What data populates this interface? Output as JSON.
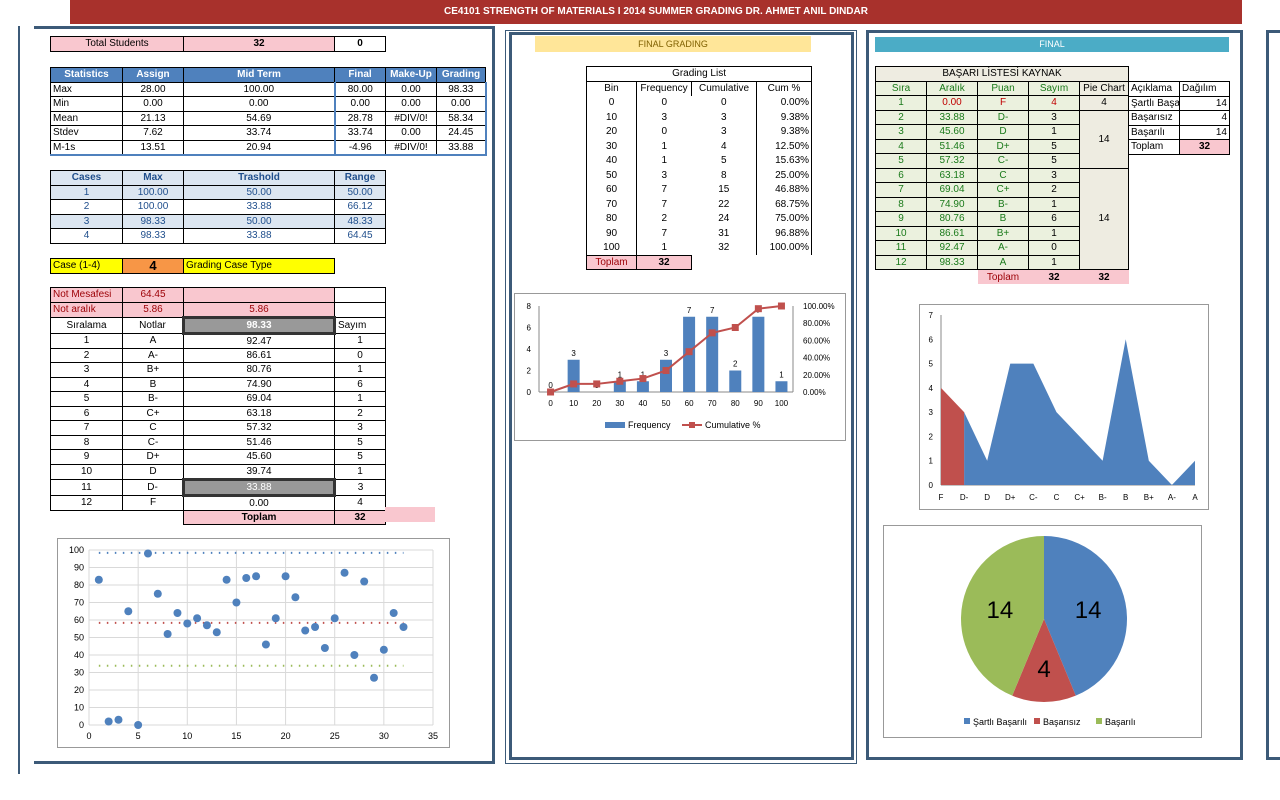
{
  "title": "CE4101 STRENGTH OF MATERIALS I 2014 SUMMER GRADING  DR. AHMET ANIL DINDAR",
  "left": {
    "total_students_label": "Total Students",
    "total_students": "32",
    "total_extra": "0",
    "stats_headers": [
      "Statistics",
      "Assign",
      "Mid Term",
      "Final",
      "Make-Up",
      "Grading"
    ],
    "stats_rows": [
      [
        "Max",
        "28.00",
        "100.00",
        "80.00",
        "0.00",
        "98.33"
      ],
      [
        "Min",
        "0.00",
        "0.00",
        "0.00",
        "0.00",
        "0.00"
      ],
      [
        "Mean",
        "21.13",
        "54.69",
        "28.78",
        "#DIV/0!",
        "58.34"
      ],
      [
        "Stdev",
        "7.62",
        "33.74",
        "33.74",
        "0.00",
        "24.45"
      ],
      [
        "M-1s",
        "13.51",
        "20.94",
        "-4.96",
        "#DIV/0!",
        "33.88"
      ]
    ],
    "cases_headers": [
      "Cases",
      "Max",
      "Trashold",
      "Range"
    ],
    "cases_rows": [
      [
        "1",
        "100.00",
        "50.00",
        "50.00"
      ],
      [
        "2",
        "100.00",
        "33.88",
        "66.12"
      ],
      [
        "3",
        "98.33",
        "50.00",
        "48.33"
      ],
      [
        "4",
        "98.33",
        "33.88",
        "64.45"
      ]
    ],
    "case_label": "Case (1-4)",
    "case_value": "4",
    "case_type_label": "Grading Case Type",
    "not_mesafesi_label": "Not Mesafesi",
    "not_mesafesi": "64.45",
    "not_aralik_label": "Not aralık",
    "not_aralik": "5.86",
    "not_aralik2": "5.86",
    "grade_headers": [
      "Sıralama",
      "Notlar",
      "98.33",
      "Sayım"
    ],
    "grade_rows": [
      [
        "1",
        "A",
        "92.47",
        "1"
      ],
      [
        "2",
        "A-",
        "86.61",
        "0"
      ],
      [
        "3",
        "B+",
        "80.76",
        "1"
      ],
      [
        "4",
        "B",
        "74.90",
        "6"
      ],
      [
        "5",
        "B-",
        "69.04",
        "1"
      ],
      [
        "6",
        "C+",
        "63.18",
        "2"
      ],
      [
        "7",
        "C",
        "57.32",
        "3"
      ],
      [
        "8",
        "C-",
        "51.46",
        "5"
      ],
      [
        "9",
        "D+",
        "45.60",
        "5"
      ],
      [
        "10",
        "D",
        "39.74",
        "1"
      ],
      [
        "11",
        "D-",
        "33.88",
        "3"
      ],
      [
        "12",
        "F",
        "0.00",
        "4"
      ]
    ],
    "toplam_label": "Toplam",
    "toplam_value": "32"
  },
  "middle": {
    "header": "FINAL GRADING",
    "grading_list_title": "Grading List",
    "headers": [
      "Bin",
      "Frequency",
      "Cumulative",
      "Cum %"
    ],
    "rows": [
      [
        "0",
        "0",
        "0",
        "0.00%"
      ],
      [
        "10",
        "3",
        "3",
        "9.38%"
      ],
      [
        "20",
        "0",
        "3",
        "9.38%"
      ],
      [
        "30",
        "1",
        "4",
        "12.50%"
      ],
      [
        "40",
        "1",
        "5",
        "15.63%"
      ],
      [
        "50",
        "3",
        "8",
        "25.00%"
      ],
      [
        "60",
        "7",
        "15",
        "46.88%"
      ],
      [
        "70",
        "7",
        "22",
        "68.75%"
      ],
      [
        "80",
        "2",
        "24",
        "75.00%"
      ],
      [
        "90",
        "7",
        "31",
        "96.88%"
      ],
      [
        "100",
        "1",
        "32",
        "100.00%"
      ]
    ],
    "toplam_label": "Toplam",
    "toplam_value": "32"
  },
  "right": {
    "header": "FINAL",
    "list_title": "BAŞARI LİSTESİ KAYNAK",
    "headers": [
      "Sıra",
      "Aralık",
      "Puan",
      "Sayım",
      "Pie Chart"
    ],
    "rows": [
      [
        "1",
        "0.00",
        "F",
        "4"
      ],
      [
        "2",
        "33.88",
        "D-",
        "3"
      ],
      [
        "3",
        "45.60",
        "D",
        "1"
      ],
      [
        "4",
        "51.46",
        "D+",
        "5"
      ],
      [
        "5",
        "57.32",
        "C-",
        "5"
      ],
      [
        "6",
        "63.18",
        "C",
        "3"
      ],
      [
        "7",
        "69.04",
        "C+",
        "2"
      ],
      [
        "8",
        "74.90",
        "B-",
        "1"
      ],
      [
        "9",
        "80.76",
        "B",
        "6"
      ],
      [
        "10",
        "86.61",
        "B+",
        "1"
      ],
      [
        "11",
        "92.47",
        "A-",
        "0"
      ],
      [
        "12",
        "98.33",
        "A",
        "1"
      ]
    ],
    "pie_values": [
      "4",
      "14",
      "14"
    ],
    "toplam_label": "Toplam",
    "toplam_value": "32",
    "toplam_value2": "32",
    "summary_headers": [
      "Açıklama",
      "Dağılım"
    ],
    "summary_rows": [
      [
        "Şartlı Başarılı",
        "14"
      ],
      [
        "Başarısız",
        "4"
      ],
      [
        "Başarılı",
        "14"
      ]
    ],
    "summary_total_label": "Toplam",
    "summary_total": "32"
  },
  "colors": {
    "banner": "#a8312c",
    "blue": "#4f81bd",
    "red": "#c0504d",
    "green": "#9bbb59",
    "pink": "#f9c7cf",
    "panel_border": "#3c5a78"
  },
  "chart_data": [
    {
      "type": "scatter",
      "xlim": [
        0,
        35
      ],
      "ylim": [
        0,
        100
      ],
      "x_ticks": [
        "0",
        "5",
        "10",
        "15",
        "20",
        "25",
        "30",
        "35"
      ],
      "y_ticks": [
        "0",
        "10",
        "20",
        "30",
        "40",
        "50",
        "60",
        "70",
        "80",
        "90",
        "100"
      ],
      "points": [
        [
          1,
          83
        ],
        [
          2,
          2
        ],
        [
          3,
          3
        ],
        [
          4,
          65
        ],
        [
          5,
          0
        ],
        [
          6,
          98
        ],
        [
          7,
          75
        ],
        [
          8,
          52
        ],
        [
          9,
          64
        ],
        [
          10,
          58
        ],
        [
          11,
          61
        ],
        [
          12,
          57
        ],
        [
          13,
          53
        ],
        [
          14,
          83
        ],
        [
          15,
          70
        ],
        [
          16,
          84
        ],
        [
          17,
          85
        ],
        [
          18,
          46
        ],
        [
          19,
          61
        ],
        [
          20,
          85
        ],
        [
          21,
          73
        ],
        [
          22,
          54
        ],
        [
          23,
          56
        ],
        [
          24,
          44
        ],
        [
          25,
          61
        ],
        [
          26,
          87
        ],
        [
          27,
          40
        ],
        [
          28,
          82
        ],
        [
          29,
          27
        ],
        [
          30,
          43
        ],
        [
          31,
          64
        ],
        [
          32,
          56
        ]
      ],
      "ref_lines": [
        98.33,
        58.34,
        33.88
      ]
    },
    {
      "type": "bar",
      "categories": [
        "0",
        "10",
        "20",
        "30",
        "40",
        "50",
        "60",
        "70",
        "80",
        "90",
        "100"
      ],
      "series": [
        {
          "name": "Frequency",
          "values": [
            0,
            3,
            0,
            1,
            1,
            3,
            7,
            7,
            2,
            7,
            1
          ]
        },
        {
          "name": "Cumulative %",
          "values": [
            0,
            9.38,
            9.38,
            12.5,
            15.63,
            25,
            46.88,
            68.75,
            75,
            96.88,
            100
          ]
        }
      ],
      "y_ticks": [
        "0",
        "2",
        "4",
        "6",
        "8"
      ],
      "y2_ticks": [
        "0.00%",
        "20.00%",
        "40.00%",
        "60.00%",
        "80.00%",
        "100.00%"
      ],
      "ylim": [
        0,
        8
      ],
      "y2lim": [
        0,
        100
      ],
      "legend": "bottom"
    },
    {
      "type": "area",
      "categories": [
        "F",
        "D-",
        "D",
        "D+",
        "C-",
        "C",
        "C+",
        "B-",
        "B",
        "B+",
        "A-",
        "A"
      ],
      "values": [
        4,
        3,
        1,
        5,
        5,
        3,
        2,
        1,
        6,
        1,
        0,
        1
      ],
      "y_ticks": [
        "0",
        "1",
        "2",
        "3",
        "4",
        "5",
        "6",
        "7"
      ],
      "ylim": [
        0,
        7
      ]
    },
    {
      "type": "pie",
      "labels": [
        "Şartlı Başarılı",
        "Başarısız",
        "Başarılı"
      ],
      "values": [
        14,
        4,
        14
      ],
      "legend": "bottom"
    }
  ]
}
